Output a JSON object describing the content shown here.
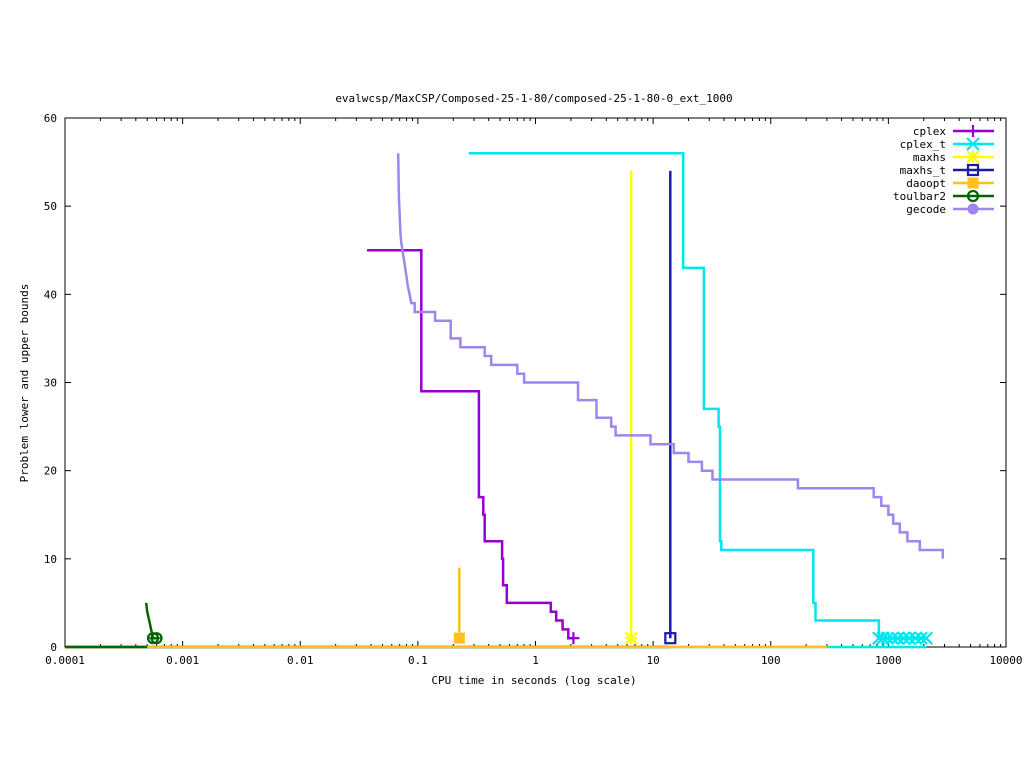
{
  "chart_data": {
    "type": "line",
    "title": "evalwcsp/MaxCSP/Composed-25-1-80/composed-25-1-80-0_ext_1000",
    "xlabel": "CPU time in seconds (log scale)",
    "ylabel": "Problem lower and upper bounds",
    "xscale": "log",
    "xlim": [
      0.0001,
      10000
    ],
    "ylim": [
      0,
      60
    ],
    "xtick_labels": [
      "0.0001",
      "0.001",
      "0.01",
      "0.1",
      "1",
      "10",
      "100",
      "1000",
      "10000"
    ],
    "ytick_labels": [
      "0",
      "10",
      "20",
      "30",
      "40",
      "50",
      "60"
    ],
    "grid": false,
    "legend_position": "top-right",
    "series": [
      {
        "name": "cplex",
        "color": "#9400d3",
        "marker": "plus",
        "upper": [
          [
            0.037,
            45
          ],
          [
            0.107,
            45
          ],
          [
            0.107,
            29
          ],
          [
            0.33,
            29
          ],
          [
            0.33,
            17
          ],
          [
            0.36,
            17
          ],
          [
            0.36,
            15
          ],
          [
            0.37,
            15
          ],
          [
            0.37,
            12
          ],
          [
            0.52,
            12
          ],
          [
            0.52,
            10
          ],
          [
            0.53,
            10
          ],
          [
            0.53,
            7
          ],
          [
            0.57,
            7
          ],
          [
            0.57,
            5
          ],
          [
            1.35,
            5
          ],
          [
            1.35,
            4
          ],
          [
            1.5,
            4
          ],
          [
            1.5,
            3
          ],
          [
            1.7,
            3
          ],
          [
            1.7,
            2
          ],
          [
            1.9,
            2
          ],
          [
            1.9,
            1
          ],
          [
            2.1,
            1
          ]
        ],
        "lower": [
          [
            0.0001,
            0
          ],
          [
            2.1,
            0
          ]
        ],
        "markers": [
          [
            2.1,
            1
          ]
        ]
      },
      {
        "name": "cplex_t",
        "color": "#00e5ee",
        "marker": "x",
        "upper": [
          [
            0.27,
            56
          ],
          [
            18,
            56
          ],
          [
            18,
            43
          ],
          [
            27,
            43
          ],
          [
            27,
            27
          ],
          [
            36,
            27
          ],
          [
            36,
            25
          ],
          [
            37,
            25
          ],
          [
            37,
            12
          ],
          [
            38,
            12
          ],
          [
            38,
            11
          ],
          [
            230,
            11
          ],
          [
            230,
            5
          ],
          [
            240,
            5
          ],
          [
            240,
            3
          ],
          [
            830,
            3
          ],
          [
            830,
            1
          ],
          [
            2100,
            1
          ]
        ],
        "lower": [
          [
            0.0001,
            0
          ],
          [
            2100,
            0
          ]
        ],
        "markers": [
          [
            830,
            1
          ],
          [
            900,
            1
          ],
          [
            980,
            1
          ],
          [
            1080,
            1
          ],
          [
            1200,
            1
          ],
          [
            1350,
            1
          ],
          [
            1500,
            1
          ],
          [
            1700,
            1
          ],
          [
            1900,
            1
          ],
          [
            2100,
            1
          ]
        ]
      },
      {
        "name": "maxhs",
        "color": "#ffff00",
        "marker": "star",
        "upper": [
          [
            6.5,
            54
          ],
          [
            6.5,
            1
          ]
        ],
        "lower": [
          [
            0.0001,
            0
          ],
          [
            6.5,
            0
          ]
        ],
        "markers": [
          [
            6.5,
            1
          ]
        ]
      },
      {
        "name": "maxhs_t",
        "color": "#1a1aaa",
        "marker": "square",
        "upper": [
          [
            14,
            54
          ],
          [
            14,
            1
          ]
        ],
        "lower": [
          [
            0.0001,
            0
          ],
          [
            14,
            0
          ]
        ],
        "markers": [
          [
            14,
            1
          ]
        ]
      },
      {
        "name": "daoopt",
        "color": "#ffc020",
        "marker": "filled-square",
        "upper": [
          [
            0.225,
            9
          ],
          [
            0.225,
            1
          ]
        ],
        "lower": [
          [
            0.0001,
            0
          ],
          [
            300,
            0
          ]
        ],
        "markers": [
          [
            0.225,
            1
          ]
        ]
      },
      {
        "name": "toulbar2",
        "color": "#006400",
        "marker": "circle-plus",
        "upper": [
          [
            0.00049,
            5
          ],
          [
            0.0005,
            4
          ],
          [
            0.00052,
            3
          ],
          [
            0.00054,
            2
          ],
          [
            0.00056,
            1
          ],
          [
            0.0006,
            1
          ]
        ],
        "lower": [
          [
            0.0001,
            0
          ],
          [
            0.0005,
            0
          ]
        ],
        "markers": [
          [
            0.00056,
            1
          ],
          [
            0.0006,
            1
          ]
        ]
      },
      {
        "name": "gecode",
        "color": "#9f85ee",
        "marker": "filled-circle",
        "upper": [
          [
            0.068,
            56
          ],
          [
            0.069,
            51
          ],
          [
            0.07,
            49
          ],
          [
            0.071,
            47
          ],
          [
            0.072,
            46
          ],
          [
            0.074,
            45
          ],
          [
            0.076,
            44
          ],
          [
            0.078,
            43
          ],
          [
            0.08,
            42
          ],
          [
            0.082,
            41
          ],
          [
            0.085,
            40
          ],
          [
            0.088,
            39
          ],
          [
            0.094,
            39
          ],
          [
            0.094,
            38
          ],
          [
            0.14,
            38
          ],
          [
            0.14,
            37
          ],
          [
            0.19,
            37
          ],
          [
            0.19,
            35
          ],
          [
            0.23,
            35
          ],
          [
            0.23,
            34
          ],
          [
            0.37,
            34
          ],
          [
            0.37,
            33
          ],
          [
            0.42,
            33
          ],
          [
            0.42,
            32
          ],
          [
            0.7,
            32
          ],
          [
            0.7,
            31
          ],
          [
            0.8,
            31
          ],
          [
            0.8,
            30
          ],
          [
            2.3,
            30
          ],
          [
            2.3,
            28
          ],
          [
            3.3,
            28
          ],
          [
            3.3,
            26
          ],
          [
            4.4,
            26
          ],
          [
            4.4,
            25
          ],
          [
            4.8,
            25
          ],
          [
            4.8,
            24
          ],
          [
            9.5,
            24
          ],
          [
            9.5,
            23
          ],
          [
            15,
            23
          ],
          [
            15,
            22
          ],
          [
            20,
            22
          ],
          [
            20,
            21
          ],
          [
            26,
            21
          ],
          [
            26,
            20
          ],
          [
            32,
            20
          ],
          [
            32,
            19
          ],
          [
            170,
            19
          ],
          [
            170,
            18
          ],
          [
            750,
            18
          ],
          [
            750,
            17
          ],
          [
            870,
            17
          ],
          [
            870,
            16
          ],
          [
            1000,
            16
          ],
          [
            1000,
            15
          ],
          [
            1100,
            15
          ],
          [
            1100,
            14
          ],
          [
            1250,
            14
          ],
          [
            1250,
            13
          ],
          [
            1450,
            13
          ],
          [
            1450,
            12
          ],
          [
            1850,
            12
          ],
          [
            1850,
            11
          ],
          [
            2900,
            11
          ],
          [
            2900,
            10
          ]
        ],
        "lower": [],
        "markers": []
      }
    ]
  }
}
